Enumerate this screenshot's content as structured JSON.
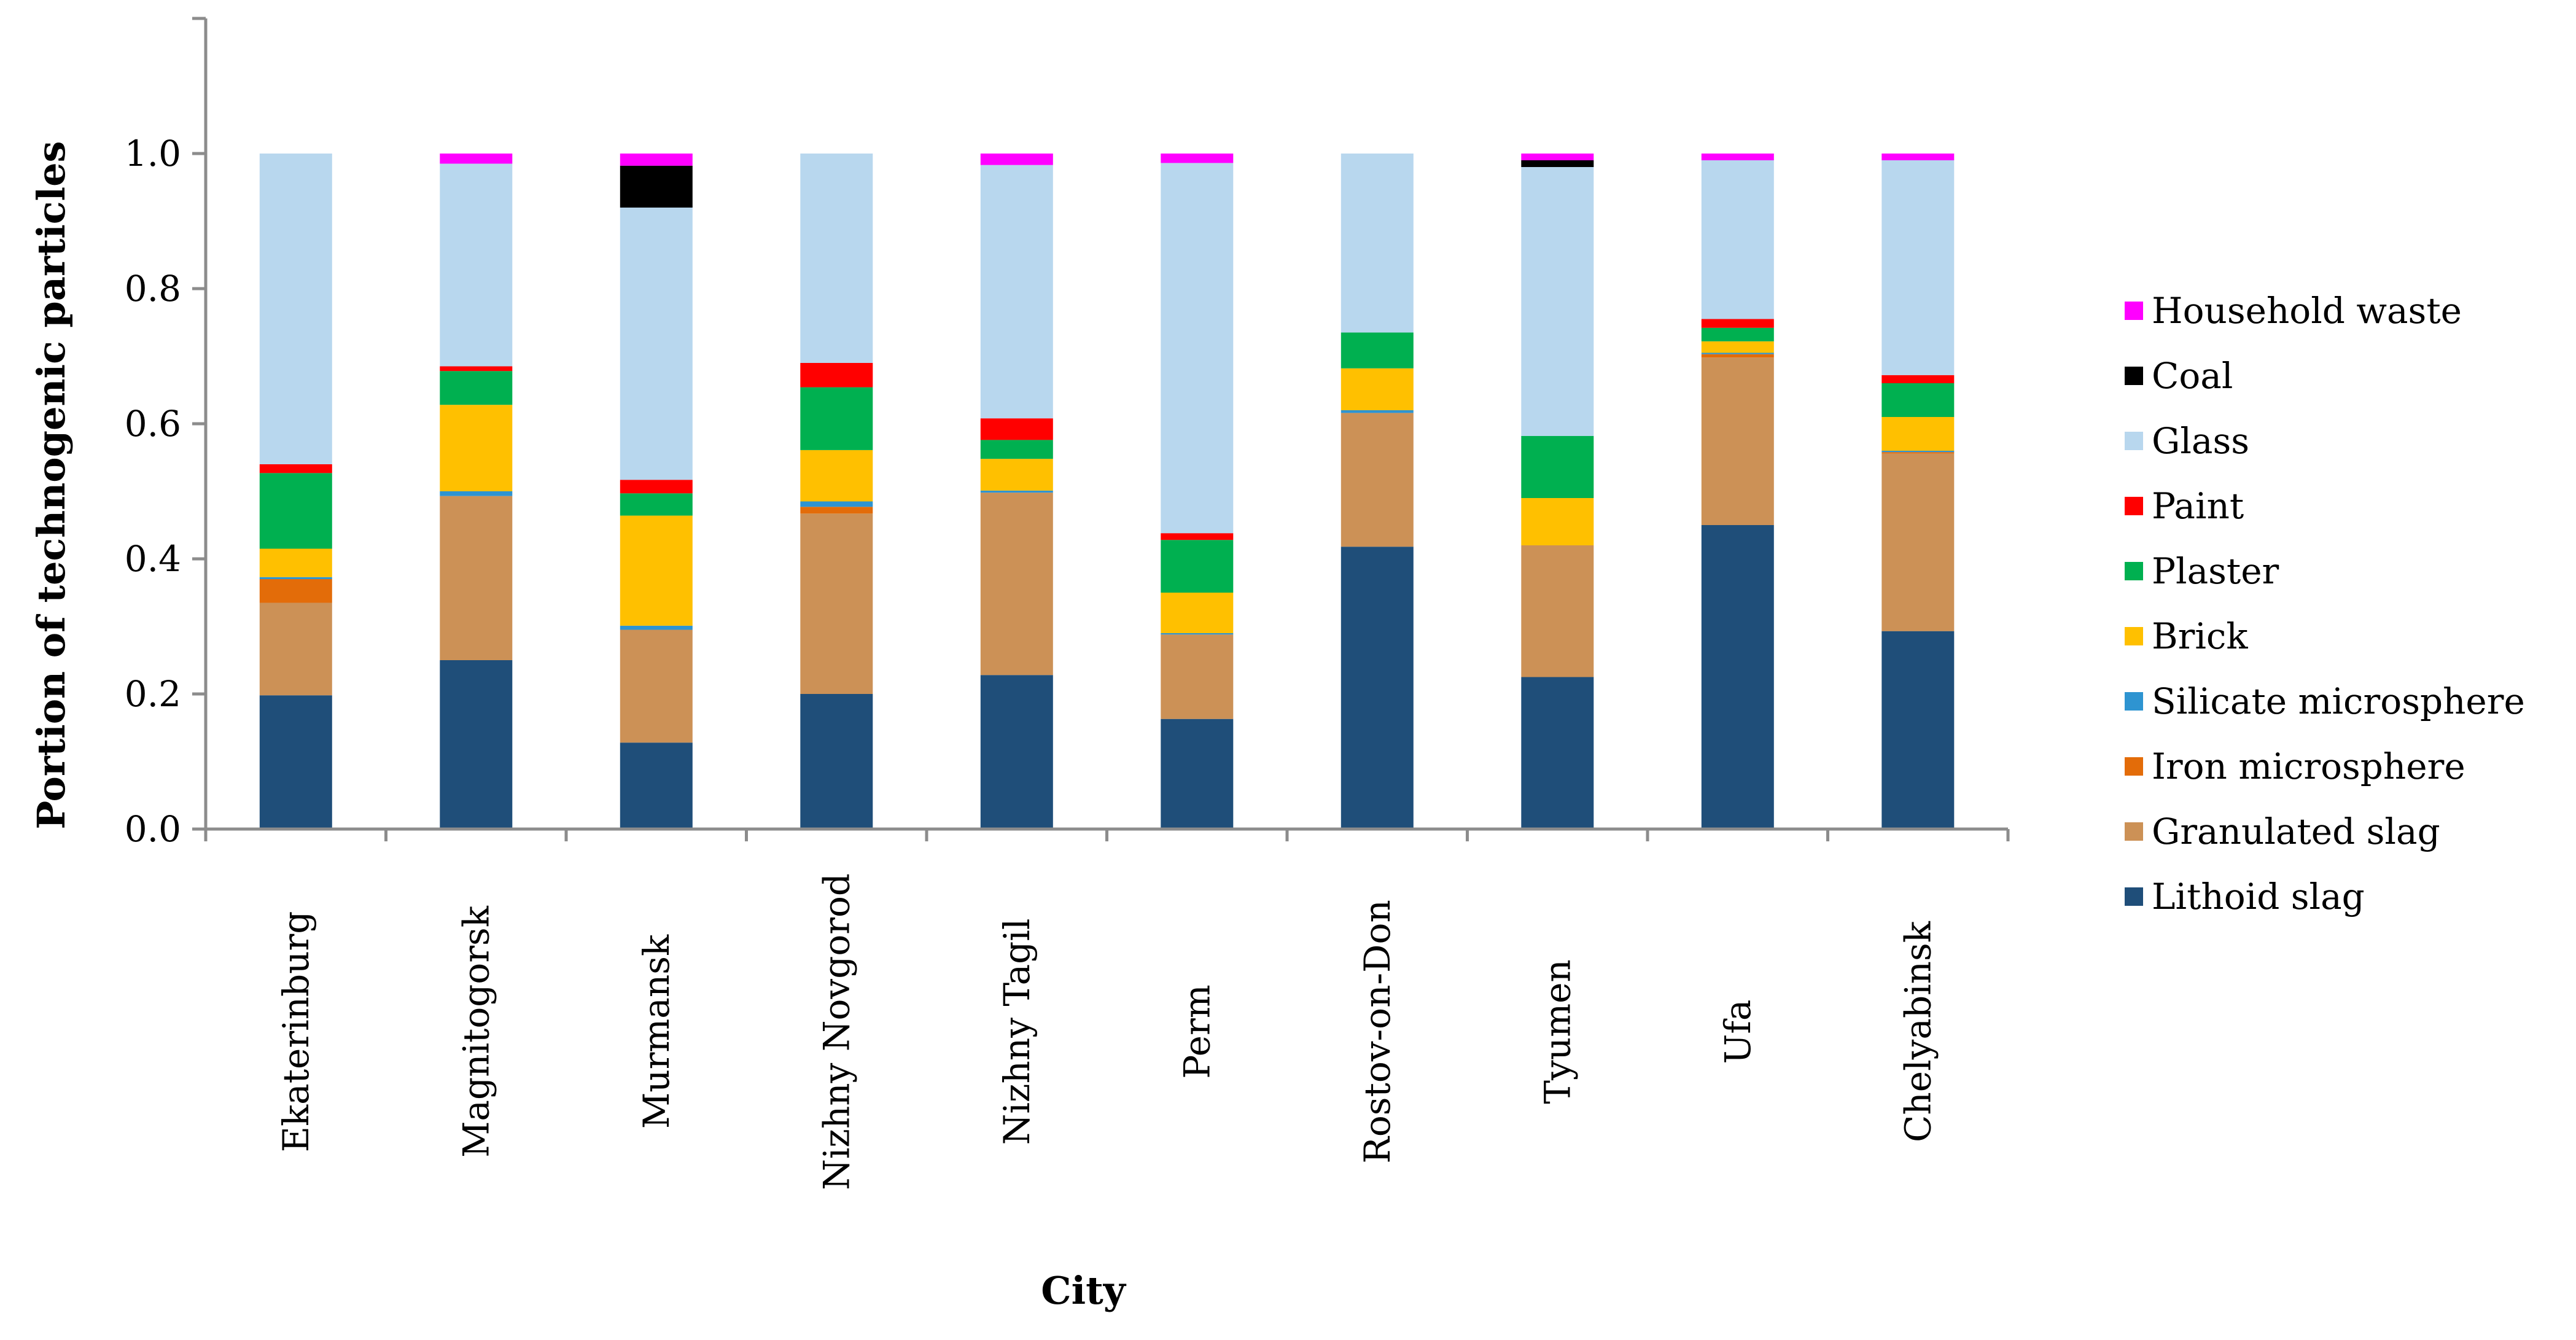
{
  "chart_data": {
    "type": "bar",
    "stacked": true,
    "title": "",
    "xlabel": "City",
    "ylabel": "Portion of technogenic particles",
    "ylim": [
      0,
      1.2
    ],
    "yticks": [
      0.0,
      0.2,
      0.4,
      0.6,
      0.8,
      1.0
    ],
    "ytick_labels": [
      "0.0",
      "0.2",
      "0.4",
      "0.6",
      "0.8",
      "1.0"
    ],
    "grid": false,
    "legend_position": "right",
    "categories": [
      "Ekaterinburg",
      "Magnitogorsk",
      "Murmansk",
      "Nizhny Novgorod",
      "Nizhny Tagil",
      "Perm",
      "Rostov-on-Don",
      "Tyumen",
      "Ufa",
      "Chelyabinsk"
    ],
    "series": [
      {
        "name": "Lithoid slag",
        "color": "#1F4E79",
        "values": [
          0.198,
          0.25,
          0.128,
          0.2,
          0.228,
          0.163,
          0.418,
          0.225,
          0.45,
          0.293
        ]
      },
      {
        "name": "Granulated slag",
        "color": "#CC9156",
        "values": [
          0.137,
          0.243,
          0.167,
          0.267,
          0.27,
          0.125,
          0.198,
          0.195,
          0.248,
          0.263
        ]
      },
      {
        "name": "Iron microsphere",
        "color": "#E36C09",
        "values": [
          0.035,
          0.0,
          0.0,
          0.01,
          0.0,
          0.0,
          0.0,
          0.0,
          0.005,
          0.002
        ]
      },
      {
        "name": "Silicate microsphere",
        "color": "#2E94D1",
        "values": [
          0.003,
          0.007,
          0.006,
          0.008,
          0.003,
          0.002,
          0.004,
          0.0,
          0.002,
          0.002
        ]
      },
      {
        "name": "Brick",
        "color": "#FFC000",
        "values": [
          0.042,
          0.128,
          0.163,
          0.076,
          0.047,
          0.06,
          0.062,
          0.07,
          0.017,
          0.05
        ]
      },
      {
        "name": "Plaster",
        "color": "#00B050",
        "values": [
          0.112,
          0.05,
          0.033,
          0.093,
          0.028,
          0.078,
          0.053,
          0.092,
          0.02,
          0.05
        ]
      },
      {
        "name": "Paint",
        "color": "#FF0000",
        "values": [
          0.013,
          0.007,
          0.02,
          0.036,
          0.032,
          0.01,
          0.0,
          0.0,
          0.013,
          0.012
        ]
      },
      {
        "name": "Glass",
        "color": "#B8D7EE",
        "values": [
          0.46,
          0.3,
          0.403,
          0.31,
          0.375,
          0.548,
          0.265,
          0.398,
          0.235,
          0.318
        ]
      },
      {
        "name": "Coal",
        "color": "#000000",
        "values": [
          0.0,
          0.0,
          0.062,
          0.0,
          0.0,
          0.0,
          0.0,
          0.01,
          0.0,
          0.0
        ]
      },
      {
        "name": "Household waste",
        "color": "#FF00FF",
        "values": [
          0.0,
          0.015,
          0.018,
          0.0,
          0.017,
          0.014,
          0.0,
          0.01,
          0.01,
          0.01
        ]
      }
    ]
  }
}
